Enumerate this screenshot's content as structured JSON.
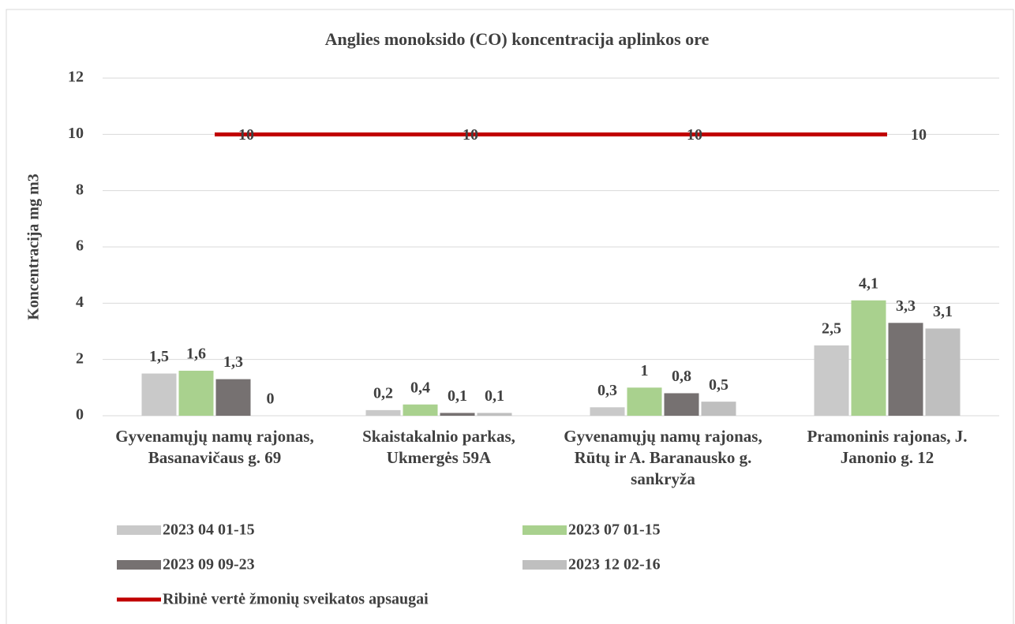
{
  "chart_data": {
    "type": "bar",
    "title": "Anglies monoksido (CO) koncentracija aplinkos ore",
    "y_label": "Koncentracija mg m3",
    "categories": [
      "Gyvenamųjų namų rajonas, Basanavičaus g. 69",
      "Skaistakalnio parkas, Ukmergės 59A",
      "Gyvenamųjų namų rajonas, Rūtų ir A. Baranausko g. sankryža",
      "Pramoninis rajonas, J. Janonio g. 12"
    ],
    "series": [
      {
        "name": "2023 04 01-15",
        "color": "#c9c9c9",
        "values": [
          1.5,
          0.2,
          0.3,
          2.5
        ],
        "value_labels": [
          "1,5",
          "0,2",
          "0,3",
          "2,5"
        ]
      },
      {
        "name": "2023 07 01-15",
        "color": "#a9d18e",
        "values": [
          1.6,
          0.4,
          1,
          4.1
        ],
        "value_labels": [
          "1,6",
          "0,4",
          "1",
          "4,1"
        ]
      },
      {
        "name": "2023 09 09-23",
        "color": "#767171",
        "values": [
          1.3,
          0.1,
          0.8,
          3.3
        ],
        "value_labels": [
          "1,3",
          "0,1",
          "0,8",
          "3,3"
        ]
      },
      {
        "name": "2023 12 02-16",
        "color": "#bfbfbf",
        "values": [
          0,
          0.1,
          0.5,
          3.1
        ],
        "value_labels": [
          "0",
          "0,1",
          "0,5",
          "3,1"
        ]
      },
      {
        "name": "Ribinė vertė žmonių sveikatos apsaugai",
        "color": "#c00000",
        "type": "line",
        "values": [
          10,
          10,
          10,
          10
        ]
      }
    ],
    "ylim": [
      0,
      12
    ],
    "yticks": [
      0,
      2,
      4,
      6,
      8,
      10,
      12
    ],
    "grid": true,
    "legend": "bottom"
  }
}
